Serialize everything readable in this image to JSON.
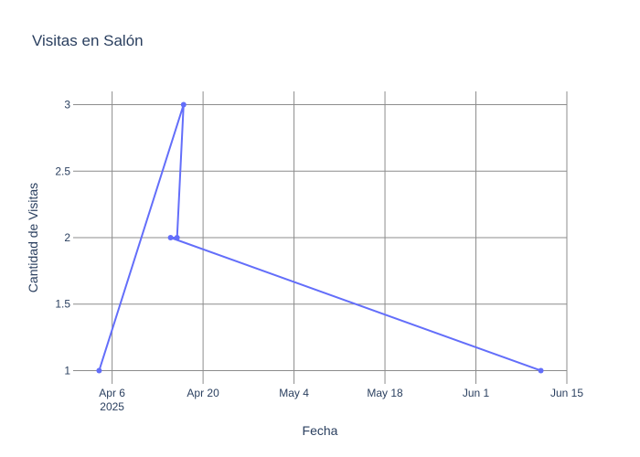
{
  "chart_data": {
    "type": "line",
    "title": "Visitas en Salón",
    "xlabel": "Fecha",
    "ylabel": "Cantidad de Visitas",
    "x_axis_type": "date",
    "xlim": [
      "2025-03-31",
      "2025-06-15"
    ],
    "ylim": [
      0.9,
      3.1
    ],
    "x_ticks": [
      {
        "date": "2025-04-06",
        "label": "Apr 6",
        "sublabel": "2025"
      },
      {
        "date": "2025-04-20",
        "label": "Apr 20",
        "sublabel": ""
      },
      {
        "date": "2025-05-04",
        "label": "May 4",
        "sublabel": ""
      },
      {
        "date": "2025-05-18",
        "label": "May 18",
        "sublabel": ""
      },
      {
        "date": "2025-06-01",
        "label": "Jun 1",
        "sublabel": ""
      },
      {
        "date": "2025-06-15",
        "label": "Jun 15",
        "sublabel": ""
      }
    ],
    "y_ticks": [
      {
        "value": 1,
        "label": "1"
      },
      {
        "value": 1.5,
        "label": "1.5"
      },
      {
        "value": 2,
        "label": "2"
      },
      {
        "value": 2.5,
        "label": "2.5"
      },
      {
        "value": 3,
        "label": "3"
      }
    ],
    "grid": true,
    "series": [
      {
        "color": "#636efa",
        "points": [
          {
            "x": "2025-04-04",
            "y": 1
          },
          {
            "x": "2025-04-17",
            "y": 3
          },
          {
            "x": "2025-04-16",
            "y": 2
          },
          {
            "x": "2025-04-15",
            "y": 2
          },
          {
            "x": "2025-06-11",
            "y": 1
          }
        ]
      }
    ]
  }
}
